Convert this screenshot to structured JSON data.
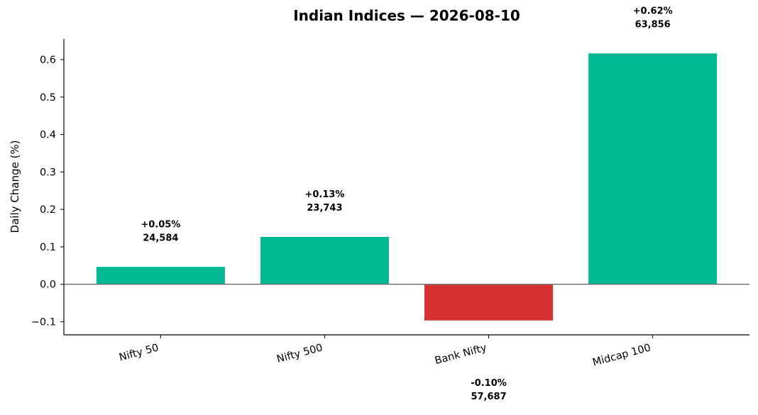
{
  "chart_data": {
    "type": "bar",
    "title": "Indian Indices — 2026-08-10",
    "xlabel": "",
    "ylabel": "Daily Change (%)",
    "ylim": [
      -0.135,
      0.655
    ],
    "yticks": [
      -0.1,
      0.0,
      0.1,
      0.2,
      0.3,
      0.4,
      0.5,
      0.6
    ],
    "ytick_labels": [
      "−0.1",
      "0.0",
      "0.1",
      "0.2",
      "0.3",
      "0.4",
      "0.5",
      "0.6"
    ],
    "categories": [
      "Nifty 50",
      "Nifty 500",
      "Bank Nifty",
      "Midcap 100"
    ],
    "values": [
      0.048,
      0.128,
      -0.098,
      0.618
    ],
    "value_labels": [
      "+0.05%",
      "+0.13%",
      "-0.10%",
      "+0.62%"
    ],
    "level_labels": [
      "24,584",
      "23,743",
      "57,687",
      "63,856"
    ],
    "zero_line": true,
    "grid": false,
    "colors": {
      "positive": "#00b894",
      "negative": "#d63031",
      "axis": "#000000"
    }
  }
}
